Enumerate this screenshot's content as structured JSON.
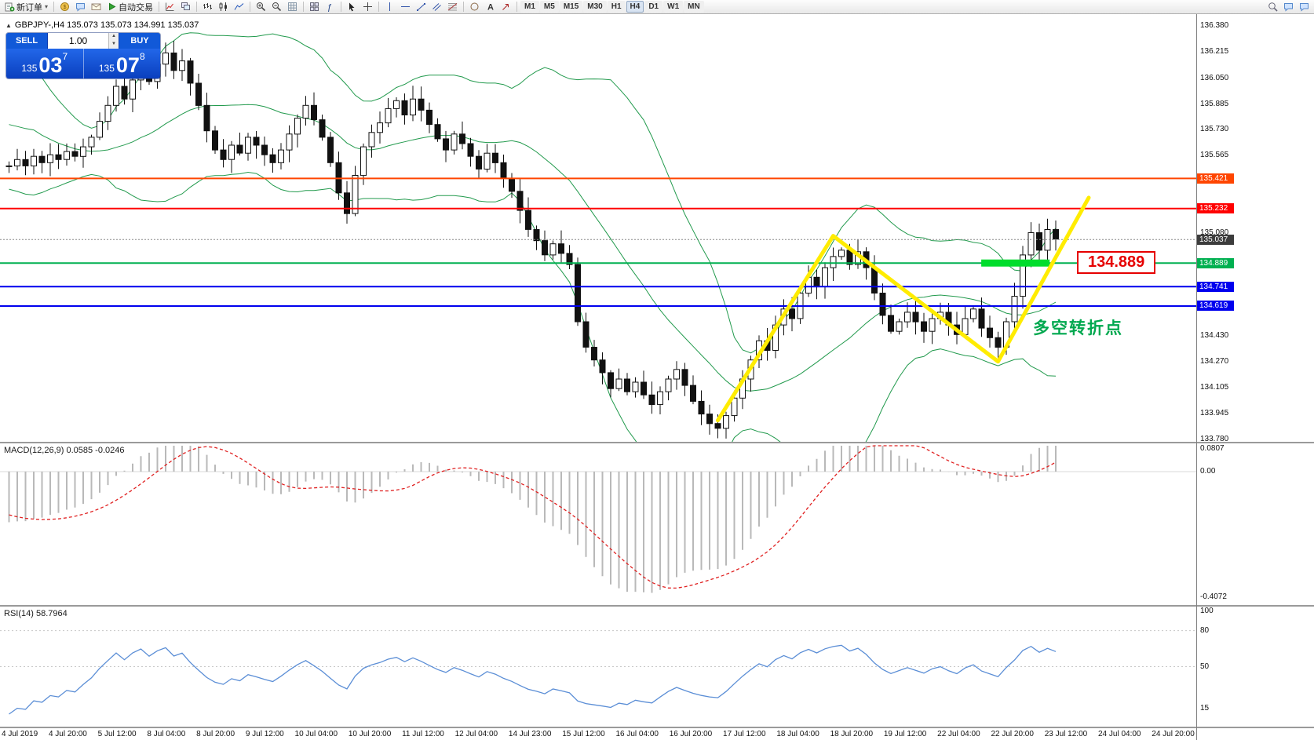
{
  "toolbar": {
    "new_order_label": "新订单",
    "auto_trading_label": "自动交易",
    "timeframes": [
      "M1",
      "M5",
      "M15",
      "M30",
      "H1",
      "H4",
      "D1",
      "W1",
      "MN"
    ],
    "active_timeframe": "H4"
  },
  "toolbar_items": [
    {
      "kind": "labelbtn",
      "name": "new-order-button",
      "icon": "neworder",
      "label_key": "new_order_label",
      "caret": true
    },
    {
      "kind": "sep"
    },
    {
      "kind": "icon",
      "name": "market-watch-icon-button",
      "icon": "coin"
    },
    {
      "kind": "icon",
      "name": "data-window-icon-button",
      "icon": "chat"
    },
    {
      "kind": "icon",
      "name": "terminal-icon-button",
      "icon": "mail"
    },
    {
      "kind": "labelbtn",
      "name": "auto-trading-button",
      "icon": "play",
      "label_key": "auto_trading_label"
    },
    {
      "kind": "sep"
    },
    {
      "kind": "icon",
      "name": "new-chart-icon-button",
      "icon": "indicator"
    },
    {
      "kind": "icon",
      "name": "profiles-icon-button",
      "icon": "cascade"
    },
    {
      "kind": "sep"
    },
    {
      "kind": "icon",
      "name": "bar-chart-type-button",
      "icon": "bars"
    },
    {
      "kind": "icon",
      "name": "candlestick-chart-type-button",
      "icon": "candles"
    },
    {
      "kind": "icon",
      "name": "line-chart-type-button",
      "icon": "linechart"
    },
    {
      "kind": "sep"
    },
    {
      "kind": "icon",
      "name": "zoom-in-button",
      "icon": "zoomin"
    },
    {
      "kind": "icon",
      "name": "zoom-out-button",
      "icon": "zoomout"
    },
    {
      "kind": "icon",
      "name": "grid-toggle-button",
      "icon": "grid"
    },
    {
      "kind": "sep"
    },
    {
      "kind": "icon",
      "name": "tile-windows-button",
      "icon": "tile"
    },
    {
      "kind": "icon",
      "name": "indicators-list-button",
      "icon": "fx"
    },
    {
      "kind": "sep"
    },
    {
      "kind": "icon",
      "name": "cursor-tool-button",
      "icon": "cursor"
    },
    {
      "kind": "icon",
      "name": "crosshair-tool-button",
      "icon": "crosshair"
    },
    {
      "kind": "sep"
    },
    {
      "kind": "icon",
      "name": "vertical-line-tool-button",
      "icon": "vline"
    },
    {
      "kind": "icon",
      "name": "horizontal-line-tool-button",
      "icon": "hline"
    },
    {
      "kind": "icon",
      "name": "trendline-tool-button",
      "icon": "trend"
    },
    {
      "kind": "icon",
      "name": "channel-tool-button",
      "icon": "channel"
    },
    {
      "kind": "icon",
      "name": "fibonacci-tool-button",
      "icon": "fibo"
    },
    {
      "kind": "sep"
    },
    {
      "kind": "icon",
      "name": "shapes-tool-button",
      "icon": "shapes"
    },
    {
      "kind": "icon",
      "name": "text-tool-button",
      "icon": "text"
    },
    {
      "kind": "icon",
      "name": "arrow-tool-button",
      "icon": "arrowtool"
    },
    {
      "kind": "sep"
    },
    {
      "kind": "timeframes"
    },
    {
      "kind": "spacer"
    },
    {
      "kind": "icon",
      "name": "search-icon-button",
      "icon": "mag"
    },
    {
      "kind": "icon",
      "name": "chat-icon-button",
      "icon": "chat"
    },
    {
      "kind": "icon",
      "name": "community-icon-button",
      "icon": "chat"
    }
  ],
  "trade_panel": {
    "sell_label": "SELL",
    "buy_label": "BUY",
    "volume": "1.00",
    "sell_price_small": "135",
    "sell_price_big": "03",
    "sell_price_sup": "7",
    "buy_price_small": "135",
    "buy_price_big": "07",
    "buy_price_sup": "8"
  },
  "chart": {
    "title": "GBPJPY-,H4 135.073 135.073 134.991 135.037"
  },
  "indicators": {
    "macd_label": "MACD(12,26,9) 0.0585 -0.0246",
    "rsi_label": "RSI(14) 58.7964"
  },
  "annotations": {
    "callout_text": "134.889",
    "pivot_text": "多空转折点",
    "pivot_color": "#00a84f",
    "trend_color": "#ffec00"
  },
  "chart_data": {
    "type": "candlestick",
    "symbol": "GBPJPY-",
    "timeframe": "H4",
    "ohlc_header": {
      "open": "135.073",
      "high": "135.073",
      "low": "134.991",
      "close": "135.037"
    },
    "price_axis_ticks": [
      {
        "v": 136.38,
        "label": "136.380"
      },
      {
        "v": 136.215,
        "label": "136.215"
      },
      {
        "v": 136.05,
        "label": "136.050"
      },
      {
        "v": 135.885,
        "label": "135.885"
      },
      {
        "v": 135.73,
        "label": "135.730"
      },
      {
        "v": 135.565,
        "label": "135.565"
      },
      {
        "v": 135.08,
        "label": "135.080"
      },
      {
        "v": 134.43,
        "label": "134.430"
      },
      {
        "v": 134.27,
        "label": "134.270"
      },
      {
        "v": 134.105,
        "label": "134.105"
      },
      {
        "v": 133.945,
        "label": "133.945"
      },
      {
        "v": 133.78,
        "label": "133.780"
      }
    ],
    "level_lines": [
      {
        "price": 135.421,
        "label": "135.421",
        "color": "#ff4500",
        "width": 2,
        "name": "resistance-line-upper"
      },
      {
        "price": 135.232,
        "label": "135.232",
        "color": "#ff0000",
        "width": 2,
        "name": "resistance-line-lower"
      },
      {
        "price": 134.889,
        "label": "134.889",
        "color": "#00b050",
        "width": 2,
        "name": "support-line-green"
      },
      {
        "price": 134.741,
        "label": "134.741",
        "color": "#0000ee",
        "width": 2,
        "name": "support-line-blue-1"
      },
      {
        "price": 134.619,
        "label": "134.619",
        "color": "#0000ee",
        "width": 2,
        "name": "support-line-blue-2"
      }
    ],
    "current_price": {
      "value": 135.037,
      "label": "135.037",
      "badge_color": "#3c3c3c"
    },
    "green_zone": {
      "price": 134.889,
      "from_candle": 118.3,
      "to_candle": 126.6,
      "thickness": 9,
      "color": "#00dd2c"
    },
    "trend_line_points": [
      {
        "candle": 86,
        "price": 133.9
      },
      {
        "candle": 100,
        "price": 135.06
      },
      {
        "candle": 120,
        "price": 134.27
      },
      {
        "candle": 131,
        "price": 135.3
      }
    ],
    "bollinger": {
      "period": 20,
      "deviation": 2,
      "color": "#229a4d"
    },
    "macd": {
      "fast": 12,
      "slow": 26,
      "signal": 9,
      "hist_color": "#b9b9b9",
      "signal_color": "#e02020",
      "axis": [
        {
          "v": 0.0807,
          "label": "0.0807"
        },
        {
          "v": 0,
          "label": "0.00"
        },
        {
          "v": -0.4072,
          "label": "-0.4072"
        }
      ]
    },
    "rsi": {
      "period": 14,
      "color": "#5b8ed6",
      "levels": [
        80,
        50
      ],
      "axis": [
        {
          "v": 100,
          "label": "100"
        },
        {
          "v": 80,
          "label": "80"
        },
        {
          "v": 50,
          "label": "50"
        },
        {
          "v": 15,
          "label": "15"
        }
      ]
    },
    "seed_closes": [
      136.18,
      136.1,
      136.02,
      135.95,
      135.9,
      135.84,
      135.78,
      135.72,
      135.76,
      135.68,
      135.62,
      135.65,
      135.58,
      135.6,
      135.54,
      135.5
    ],
    "closes": [
      135.5,
      135.54,
      135.5,
      135.56,
      135.52,
      135.57,
      135.54,
      135.59,
      135.56,
      135.62,
      135.68,
      135.78,
      135.88,
      136.0,
      135.92,
      136.04,
      136.12,
      136.03,
      136.14,
      136.21,
      136.1,
      136.16,
      136.02,
      135.88,
      135.72,
      135.6,
      135.54,
      135.63,
      135.58,
      135.68,
      135.63,
      135.57,
      135.52,
      135.6,
      135.7,
      135.8,
      135.88,
      135.79,
      135.68,
      135.52,
      135.33,
      135.2,
      135.44,
      135.62,
      135.71,
      135.77,
      135.86,
      135.91,
      135.82,
      135.92,
      135.85,
      135.76,
      135.67,
      135.6,
      135.7,
      135.64,
      135.56,
      135.48,
      135.58,
      135.52,
      135.42,
      135.34,
      135.22,
      135.1,
      135.03,
      134.94,
      135.01,
      134.95,
      134.88,
      134.52,
      134.36,
      134.28,
      134.2,
      134.1,
      134.16,
      134.08,
      134.14,
      134.06,
      134.0,
      134.08,
      134.16,
      134.22,
      134.12,
      134.02,
      133.94,
      133.88,
      133.85,
      133.93,
      134.04,
      134.16,
      134.28,
      134.4,
      134.34,
      134.5,
      134.6,
      134.54,
      134.7,
      134.8,
      134.74,
      134.86,
      134.93,
      134.97,
      134.88,
      134.96,
      134.86,
      134.7,
      134.56,
      134.46,
      134.52,
      134.58,
      134.52,
      134.46,
      134.54,
      134.58,
      134.5,
      134.44,
      134.54,
      134.6,
      134.48,
      134.42,
      134.36,
      134.52,
      134.68,
      134.94,
      135.08,
      134.97,
      135.1,
      135.04
    ],
    "time_axis": [
      "4 Jul 2019",
      "4 Jul 20:00",
      "5 Jul 12:00",
      "8 Jul 04:00",
      "8 Jul 20:00",
      "9 Jul 12:00",
      "10 Jul 04:00",
      "10 Jul 20:00",
      "11 Jul 12:00",
      "12 Jul 04:00",
      "14 Jul 23:00",
      "15 Jul 12:00",
      "16 Jul 04:00",
      "16 Jul 20:00",
      "17 Jul 12:00",
      "18 Jul 04:00",
      "18 Jul 20:00",
      "19 Jul 12:00",
      "22 Jul 04:00",
      "22 Jul 20:00",
      "23 Jul 12:00",
      "24 Jul 04:00",
      "24 Jul 20:00"
    ]
  }
}
